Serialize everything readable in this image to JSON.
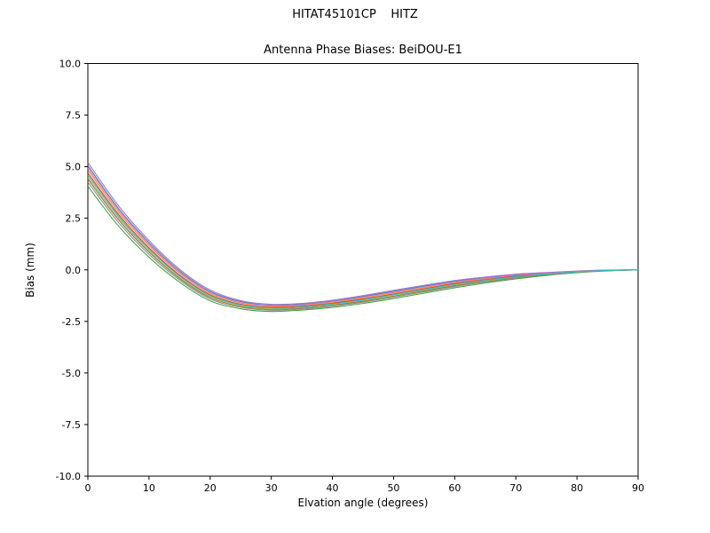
{
  "header": {
    "suptitle": "HITAT45101CP    HITZ",
    "title": "Antenna Phase Biases: BeiDOU-E1"
  },
  "chart_data": {
    "type": "line",
    "suptitle": "HITAT45101CP    HITZ",
    "title": "Antenna Phase Biases: BeiDOU-E1",
    "xlabel": "Elvation angle (degrees)",
    "ylabel": "Bias (mm)",
    "xlim": [
      0,
      90
    ],
    "ylim": [
      -10,
      10
    ],
    "grid": false,
    "legend": "none",
    "xticks": [
      0,
      10,
      20,
      30,
      40,
      50,
      60,
      70,
      80,
      90
    ],
    "yticks": [
      -10,
      -7.5,
      -5,
      -2.5,
      0,
      2.5,
      5,
      7.5,
      10
    ],
    "ytick_labels": [
      "-10.0",
      "-7.5",
      "-5.0",
      "-2.5",
      "0.0",
      "2.5",
      "5.0",
      "7.5",
      "10.0"
    ],
    "x": [
      0,
      5,
      10,
      15,
      20,
      25,
      30,
      35,
      40,
      45,
      50,
      55,
      60,
      65,
      70,
      75,
      80,
      85,
      90
    ],
    "series": [
      {
        "name": "bias-curve-1",
        "color": "#1f77b4",
        "values": [
          5.05,
          2.98,
          1.32,
          -0.05,
          -1.05,
          -1.54,
          -1.72,
          -1.67,
          -1.52,
          -1.3,
          -1.04,
          -0.8,
          -0.56,
          -0.39,
          -0.24,
          -0.15,
          -0.07,
          -0.02,
          0.0
        ]
      },
      {
        "name": "bias-curve-2",
        "color": "#ff7f0e",
        "values": [
          4.85,
          2.81,
          1.18,
          -0.16,
          -1.14,
          -1.61,
          -1.77,
          -1.73,
          -1.57,
          -1.37,
          -1.11,
          -0.87,
          -0.62,
          -0.44,
          -0.28,
          -0.17,
          -0.08,
          -0.02,
          0.0
        ]
      },
      {
        "name": "bias-curve-3",
        "color": "#2ca02c",
        "values": [
          4.05,
          2.13,
          0.61,
          -0.6,
          -1.5,
          -1.89,
          -2.02,
          -1.95,
          -1.82,
          -1.63,
          -1.39,
          -1.13,
          -0.87,
          -0.64,
          -0.44,
          -0.27,
          -0.14,
          -0.05,
          0.0
        ]
      },
      {
        "name": "bias-curve-4",
        "color": "#d62728",
        "values": [
          4.7,
          2.69,
          1.07,
          -0.25,
          -1.21,
          -1.67,
          -1.82,
          -1.77,
          -1.62,
          -1.42,
          -1.17,
          -0.92,
          -0.67,
          -0.48,
          -0.31,
          -0.19,
          -0.09,
          -0.03,
          0.0
        ]
      },
      {
        "name": "bias-curve-5",
        "color": "#9467bd",
        "values": [
          5.2,
          3.11,
          1.42,
          0.03,
          -0.98,
          -1.49,
          -1.67,
          -1.63,
          -1.47,
          -1.25,
          -0.99,
          -0.75,
          -0.52,
          -0.35,
          -0.21,
          -0.13,
          -0.06,
          -0.01,
          0.0
        ]
      },
      {
        "name": "bias-curve-6",
        "color": "#8c564b",
        "values": [
          4.4,
          2.43,
          0.86,
          -0.41,
          -1.34,
          -1.77,
          -1.91,
          -1.86,
          -1.71,
          -1.52,
          -1.27,
          -1.02,
          -0.76,
          -0.55,
          -0.37,
          -0.22,
          -0.11,
          -0.04,
          0.0
        ]
      },
      {
        "name": "bias-curve-7",
        "color": "#e377c2",
        "values": [
          4.95,
          2.9,
          1.25,
          -0.11,
          -1.09,
          -1.58,
          -1.74,
          -1.7,
          -1.54,
          -1.33,
          -1.08,
          -0.83,
          -0.59,
          -0.41,
          -0.26,
          -0.16,
          -0.08,
          -0.02,
          0.0
        ]
      },
      {
        "name": "bias-curve-8",
        "color": "#7f7f7f",
        "values": [
          4.25,
          2.3,
          0.75,
          -0.49,
          -1.41,
          -1.82,
          -1.96,
          -1.9,
          -1.76,
          -1.57,
          -1.32,
          -1.07,
          -0.81,
          -0.59,
          -0.4,
          -0.24,
          -0.12,
          -0.04,
          0.0
        ]
      },
      {
        "name": "bias-curve-9",
        "color": "#bcbd22",
        "values": [
          4.5,
          2.52,
          0.93,
          -0.36,
          -1.3,
          -1.74,
          -1.88,
          -1.83,
          -1.68,
          -1.48,
          -1.24,
          -0.98,
          -0.73,
          -0.53,
          -0.35,
          -0.21,
          -0.11,
          -0.03,
          0.0
        ]
      },
      {
        "name": "bias-curve-10",
        "color": "#17becf",
        "values": [
          4.6,
          2.6,
          1.0,
          -0.3,
          -1.25,
          -1.7,
          -1.85,
          -1.8,
          -1.65,
          -1.45,
          -1.2,
          -0.95,
          -0.7,
          -0.5,
          -0.33,
          -0.2,
          -0.1,
          -0.03,
          0.0
        ]
      }
    ],
    "axis_color": "#000000",
    "background_color": "#ffffff"
  }
}
